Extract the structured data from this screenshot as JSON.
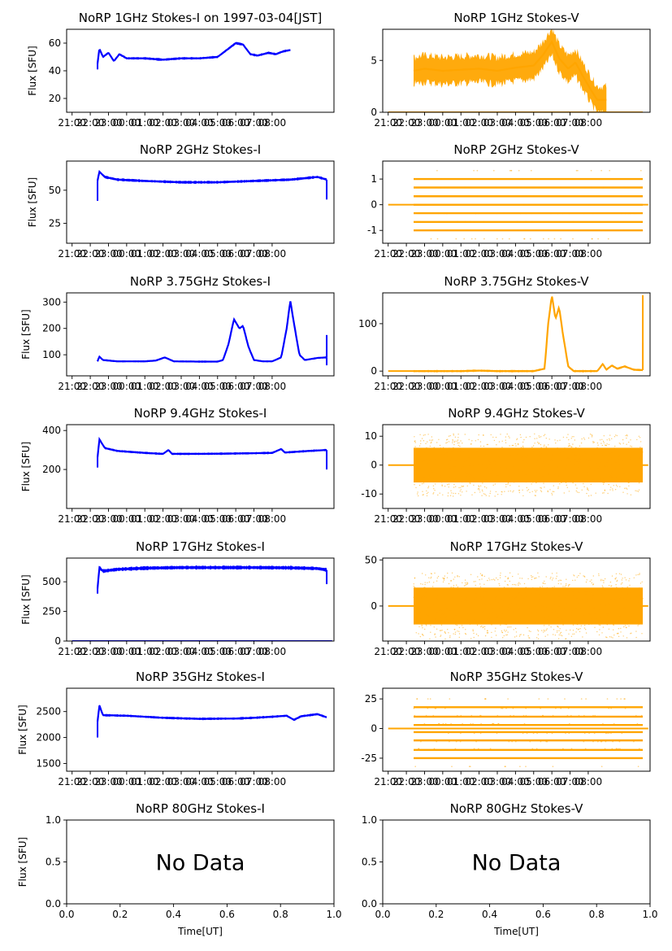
{
  "figure": {
    "series_colors": {
      "stokes_i": "#0000ff",
      "stokes_v": "#ffa500"
    },
    "x_label": "Time[UT]"
  },
  "chart_data": [
    {
      "type": "scatter",
      "title": "NoRP 1GHz Stokes-I on 1997-03-04[JST]",
      "ylabel": "Flux [SFU]",
      "xlabel": "",
      "yticks": [
        20,
        40,
        60
      ],
      "ylim": [
        10,
        70
      ],
      "xticks": [
        "21:00",
        "22:00",
        "23:00",
        "00:00",
        "01:00",
        "02:00",
        "03:00",
        "04:00",
        "05:00",
        "06:00",
        "07:00",
        "08:00"
      ],
      "x_range_hours": [
        -3.3,
        11.4
      ],
      "data_hours": [
        -1.6,
        9.0
      ],
      "band": 0.8,
      "values": [
        [
          -1.6,
          45
        ],
        [
          -1.5,
          56
        ],
        [
          -1.3,
          50
        ],
        [
          -1.0,
          53
        ],
        [
          -0.7,
          47
        ],
        [
          -0.4,
          52
        ],
        [
          0,
          49
        ],
        [
          1,
          49
        ],
        [
          2,
          48
        ],
        [
          3,
          49
        ],
        [
          4,
          49
        ],
        [
          5,
          50
        ],
        [
          5.6,
          56
        ],
        [
          6.0,
          60
        ],
        [
          6.4,
          59
        ],
        [
          6.8,
          52
        ],
        [
          7.2,
          51
        ],
        [
          7.8,
          53
        ],
        [
          8.2,
          52
        ],
        [
          8.6,
          54
        ],
        [
          9.0,
          55
        ]
      ],
      "spikes": [
        [
          -1.6,
          41
        ]
      ]
    },
    {
      "type": "scatter",
      "title": "NoRP 1GHz Stokes-V",
      "ylabel": "",
      "xlabel": "",
      "yticks": [
        0,
        5
      ],
      "ylim": [
        0,
        8
      ],
      "xticks": [
        "21:00",
        "22:00",
        "23:00",
        "00:00",
        "01:00",
        "02:00",
        "03:00",
        "04:00",
        "05:00",
        "06:00",
        "07:00",
        "08:00"
      ],
      "x_range_hours": [
        -3.3,
        11.4
      ],
      "data_hours": [
        -1.6,
        9.0
      ],
      "band": 1.3,
      "values": [
        [
          -1.6,
          4.0
        ],
        [
          -1.0,
          4.2
        ],
        [
          0,
          4.0
        ],
        [
          1,
          4.1
        ],
        [
          2,
          4.2
        ],
        [
          3,
          4.0
        ],
        [
          4,
          4.3
        ],
        [
          5,
          4.5
        ],
        [
          5.5,
          5.5
        ],
        [
          6.0,
          6.8
        ],
        [
          6.4,
          5.2
        ],
        [
          6.9,
          4.2
        ],
        [
          7.3,
          4.8
        ],
        [
          7.7,
          3.5
        ],
        [
          8.2,
          2.0
        ],
        [
          8.5,
          1.2
        ]
      ],
      "baseline": {
        "value": 0,
        "from": -3.0,
        "to": 11.0
      }
    },
    {
      "type": "scatter",
      "title": "NoRP 2GHz Stokes-I",
      "ylabel": "Flux [SFU]",
      "xlabel": "",
      "yticks": [
        25,
        50
      ],
      "ylim": [
        10,
        72
      ],
      "xticks": [
        "21:00",
        "22:00",
        "23:00",
        "00:00",
        "01:00",
        "02:00",
        "03:00",
        "04:00",
        "05:00",
        "06:00",
        "07:00",
        "08:00"
      ],
      "x_range_hours": [
        -3.3,
        11.4
      ],
      "data_hours": [
        -1.6,
        11.0
      ],
      "band": 0.9,
      "values": [
        [
          -1.6,
          57
        ],
        [
          -1.5,
          64
        ],
        [
          -1.2,
          60
        ],
        [
          -0.5,
          58
        ],
        [
          1,
          57
        ],
        [
          3,
          56
        ],
        [
          5,
          56
        ],
        [
          7,
          57
        ],
        [
          9,
          58
        ],
        [
          10.5,
          60
        ],
        [
          11.0,
          58
        ]
      ],
      "spikes": [
        [
          -1.6,
          42
        ],
        [
          11.0,
          43
        ]
      ]
    },
    {
      "type": "scatter",
      "title": "NoRP 2GHz Stokes-V",
      "ylabel": "",
      "xlabel": "",
      "yticks": [
        -1,
        0,
        1
      ],
      "ylim": [
        -1.5,
        1.7
      ],
      "xticks": [
        "21:00",
        "22:00",
        "23:00",
        "00:00",
        "01:00",
        "02:00",
        "03:00",
        "04:00",
        "05:00",
        "06:00",
        "07:00",
        "08:00"
      ],
      "x_range_hours": [
        -3.3,
        11.4
      ],
      "data_hours": [
        -1.6,
        11.0
      ],
      "levels": [
        -1.0,
        -0.67,
        -0.33,
        0,
        0.33,
        0.67,
        1.0
      ],
      "baseline": {
        "value": 0,
        "from": -3.0,
        "to": 11.3
      }
    },
    {
      "type": "scatter",
      "title": "NoRP 3.75GHz Stokes-I",
      "ylabel": "Flux [SFU]",
      "xlabel": "",
      "yticks": [
        100,
        200,
        300
      ],
      "ylim": [
        20,
        335
      ],
      "xticks": [
        "21:00",
        "22:00",
        "23:00",
        "00:00",
        "01:00",
        "02:00",
        "03:00",
        "04:00",
        "05:00",
        "06:00",
        "07:00",
        "08:00"
      ],
      "x_range_hours": [
        -3.3,
        11.4
      ],
      "data_hours": [
        -1.6,
        11.0
      ],
      "band": 3,
      "values": [
        [
          -1.6,
          75
        ],
        [
          -1.5,
          93
        ],
        [
          -1.3,
          80
        ],
        [
          -0.5,
          75
        ],
        [
          1,
          75
        ],
        [
          1.6,
          78
        ],
        [
          2.1,
          90
        ],
        [
          2.6,
          75
        ],
        [
          4,
          74
        ],
        [
          5,
          74
        ],
        [
          5.3,
          80
        ],
        [
          5.6,
          140
        ],
        [
          5.9,
          235
        ],
        [
          6.2,
          200
        ],
        [
          6.4,
          210
        ],
        [
          6.7,
          130
        ],
        [
          7.0,
          80
        ],
        [
          7.5,
          75
        ],
        [
          8,
          75
        ],
        [
          8.5,
          90
        ],
        [
          8.8,
          200
        ],
        [
          9.0,
          305
        ],
        [
          9.2,
          220
        ],
        [
          9.5,
          100
        ],
        [
          9.8,
          80
        ],
        [
          10.5,
          88
        ],
        [
          11.0,
          90
        ]
      ],
      "spikes": [
        [
          11.0,
          175
        ],
        [
          11.0,
          60
        ]
      ]
    },
    {
      "type": "scatter",
      "title": "NoRP 3.75GHz Stokes-V",
      "ylabel": "",
      "xlabel": "",
      "yticks": [
        0,
        100
      ],
      "ylim": [
        -10,
        165
      ],
      "xticks": [
        "21:00",
        "22:00",
        "23:00",
        "00:00",
        "01:00",
        "02:00",
        "03:00",
        "04:00",
        "05:00",
        "06:00",
        "07:00",
        "08:00"
      ],
      "x_range_hours": [
        -3.3,
        11.4
      ],
      "data_hours": [
        -1.6,
        11.0
      ],
      "band": 2,
      "values": [
        [
          -1.6,
          0
        ],
        [
          1,
          0
        ],
        [
          2,
          1
        ],
        [
          3,
          0
        ],
        [
          5,
          0
        ],
        [
          5.6,
          5
        ],
        [
          5.8,
          100
        ],
        [
          6.0,
          160
        ],
        [
          6.2,
          110
        ],
        [
          6.4,
          135
        ],
        [
          6.6,
          80
        ],
        [
          6.9,
          10
        ],
        [
          7.2,
          0
        ],
        [
          8.5,
          0
        ],
        [
          8.8,
          15
        ],
        [
          9.0,
          3
        ],
        [
          9.3,
          12
        ],
        [
          9.6,
          5
        ],
        [
          10,
          10
        ],
        [
          10.5,
          3
        ],
        [
          11.0,
          2
        ]
      ],
      "spikes": [
        [
          11.0,
          160
        ],
        [
          11.0,
          60
        ]
      ],
      "baseline": {
        "value": 0,
        "from": -3.0,
        "to": -1.6
      }
    },
    {
      "type": "scatter",
      "title": "NoRP 9.4GHz Stokes-I",
      "ylabel": "Flux [SFU]",
      "xlabel": "",
      "yticks": [
        200,
        400
      ],
      "ylim": [
        0,
        430
      ],
      "xticks": [
        "21:00",
        "22:00",
        "23:00",
        "00:00",
        "01:00",
        "02:00",
        "03:00",
        "04:00",
        "05:00",
        "06:00",
        "07:00",
        "08:00"
      ],
      "x_range_hours": [
        -3.3,
        11.4
      ],
      "data_hours": [
        -1.6,
        11.0
      ],
      "band": 5,
      "values": [
        [
          -1.6,
          260
        ],
        [
          -1.5,
          355
        ],
        [
          -1.2,
          310
        ],
        [
          -0.5,
          295
        ],
        [
          1,
          285
        ],
        [
          2,
          280
        ],
        [
          2.3,
          300
        ],
        [
          2.5,
          280
        ],
        [
          4,
          280
        ],
        [
          6,
          282
        ],
        [
          8,
          285
        ],
        [
          8.5,
          305
        ],
        [
          8.7,
          287
        ],
        [
          10,
          295
        ],
        [
          11.0,
          300
        ]
      ],
      "spikes": [
        [
          -1.6,
          210
        ],
        [
          11.0,
          200
        ]
      ]
    },
    {
      "type": "scatter",
      "title": "NoRP 9.4GHz Stokes-V",
      "ylabel": "",
      "xlabel": "",
      "yticks": [
        -10,
        0,
        10
      ],
      "ylim": [
        -15,
        14
      ],
      "xticks": [
        "21:00",
        "22:00",
        "23:00",
        "00:00",
        "01:00",
        "02:00",
        "03:00",
        "04:00",
        "05:00",
        "06:00",
        "07:00",
        "08:00"
      ],
      "x_range_hours": [
        -3.3,
        11.4
      ],
      "data_hours": [
        -1.6,
        11.0
      ],
      "noise": 6,
      "baseline": {
        "value": 0,
        "from": -3.0,
        "to": 11.3
      }
    },
    {
      "type": "scatter",
      "title": "NoRP 17GHz Stokes-I",
      "ylabel": "Flux [SFU]",
      "xlabel": "",
      "yticks": [
        0,
        250,
        500
      ],
      "ylim": [
        0,
        700
      ],
      "xticks": [
        "21:00",
        "22:00",
        "23:00",
        "00:00",
        "01:00",
        "02:00",
        "03:00",
        "04:00",
        "05:00",
        "06:00",
        "07:00",
        "08:00"
      ],
      "x_range_hours": [
        -3.3,
        11.4
      ],
      "data_hours": [
        -1.6,
        11.0
      ],
      "band": 14,
      "values": [
        [
          -1.6,
          440
        ],
        [
          -1.5,
          620
        ],
        [
          -1.3,
          590
        ],
        [
          -0.5,
          605
        ],
        [
          1,
          615
        ],
        [
          3,
          620
        ],
        [
          5,
          620
        ],
        [
          7,
          620
        ],
        [
          9,
          618
        ],
        [
          10.5,
          612
        ],
        [
          11.0,
          600
        ]
      ],
      "spikes": [
        [
          -1.6,
          400
        ],
        [
          11.0,
          480
        ]
      ],
      "baseline": {
        "value": 0,
        "from": -3.0,
        "to": 11.3
      }
    },
    {
      "type": "scatter",
      "title": "NoRP 17GHz Stokes-V",
      "ylabel": "",
      "xlabel": "",
      "yticks": [
        0,
        50
      ],
      "ylim": [
        -38,
        52
      ],
      "xticks": [
        "21:00",
        "22:00",
        "23:00",
        "00:00",
        "01:00",
        "02:00",
        "03:00",
        "04:00",
        "05:00",
        "06:00",
        "07:00",
        "08:00"
      ],
      "x_range_hours": [
        -3.3,
        11.4
      ],
      "data_hours": [
        -1.6,
        11.0
      ],
      "noise": 20,
      "baseline": {
        "value": 0,
        "from": -3.0,
        "to": 11.3
      }
    },
    {
      "type": "scatter",
      "title": "NoRP 35GHz Stokes-I",
      "ylabel": "Flux [SFU]",
      "xlabel": "",
      "yticks": [
        1500,
        2000,
        2500
      ],
      "ylim": [
        1350,
        2950
      ],
      "xticks": [
        "21:00",
        "22:00",
        "23:00",
        "00:00",
        "01:00",
        "02:00",
        "03:00",
        "04:00",
        "05:00",
        "06:00",
        "07:00",
        "08:00"
      ],
      "x_range_hours": [
        -3.3,
        11.4
      ],
      "data_hours": [
        -1.6,
        11.0
      ],
      "band": 20,
      "values": [
        [
          -1.6,
          2300
        ],
        [
          -1.5,
          2620
        ],
        [
          -1.3,
          2430
        ],
        [
          0,
          2420
        ],
        [
          2,
          2380
        ],
        [
          4,
          2360
        ],
        [
          6,
          2365
        ],
        [
          7,
          2380
        ],
        [
          8,
          2400
        ],
        [
          8.8,
          2420
        ],
        [
          9.2,
          2340
        ],
        [
          9.6,
          2410
        ],
        [
          10.5,
          2450
        ],
        [
          11.0,
          2390
        ]
      ],
      "spikes": [
        [
          -1.6,
          2000
        ]
      ]
    },
    {
      "type": "scatter",
      "title": "NoRP 35GHz Stokes-V",
      "ylabel": "",
      "xlabel": "",
      "yticks": [
        -25,
        0,
        25
      ],
      "ylim": [
        -36,
        34
      ],
      "xticks": [
        "21:00",
        "22:00",
        "23:00",
        "00:00",
        "01:00",
        "02:00",
        "03:00",
        "04:00",
        "05:00",
        "06:00",
        "07:00",
        "08:00"
      ],
      "x_range_hours": [
        -3.3,
        11.4
      ],
      "data_hours": [
        -1.6,
        11.0
      ],
      "levels": [
        -25,
        -18,
        -10,
        -3,
        3,
        10,
        18
      ],
      "baseline": {
        "value": 0,
        "from": -3.0,
        "to": 11.3
      }
    },
    {
      "type": "table",
      "title": "NoRP 80GHz Stokes-I",
      "ylabel": "Flux [SFU]",
      "xlabel": "Time[UT]",
      "yticks": [
        "0.0",
        "0.5",
        "1.0"
      ],
      "xticks": [
        "0.0",
        "0.2",
        "0.4",
        "0.6",
        "0.8",
        "1.0"
      ],
      "ylim": [
        0,
        1
      ],
      "note": "No Data"
    },
    {
      "type": "table",
      "title": "NoRP 80GHz Stokes-V",
      "ylabel": "",
      "xlabel": "Time[UT]",
      "yticks": [
        "0.0",
        "0.5",
        "1.0"
      ],
      "xticks": [
        "0.0",
        "0.2",
        "0.4",
        "0.6",
        "0.8",
        "1.0"
      ],
      "ylim": [
        0,
        1
      ],
      "note": "No Data"
    }
  ]
}
